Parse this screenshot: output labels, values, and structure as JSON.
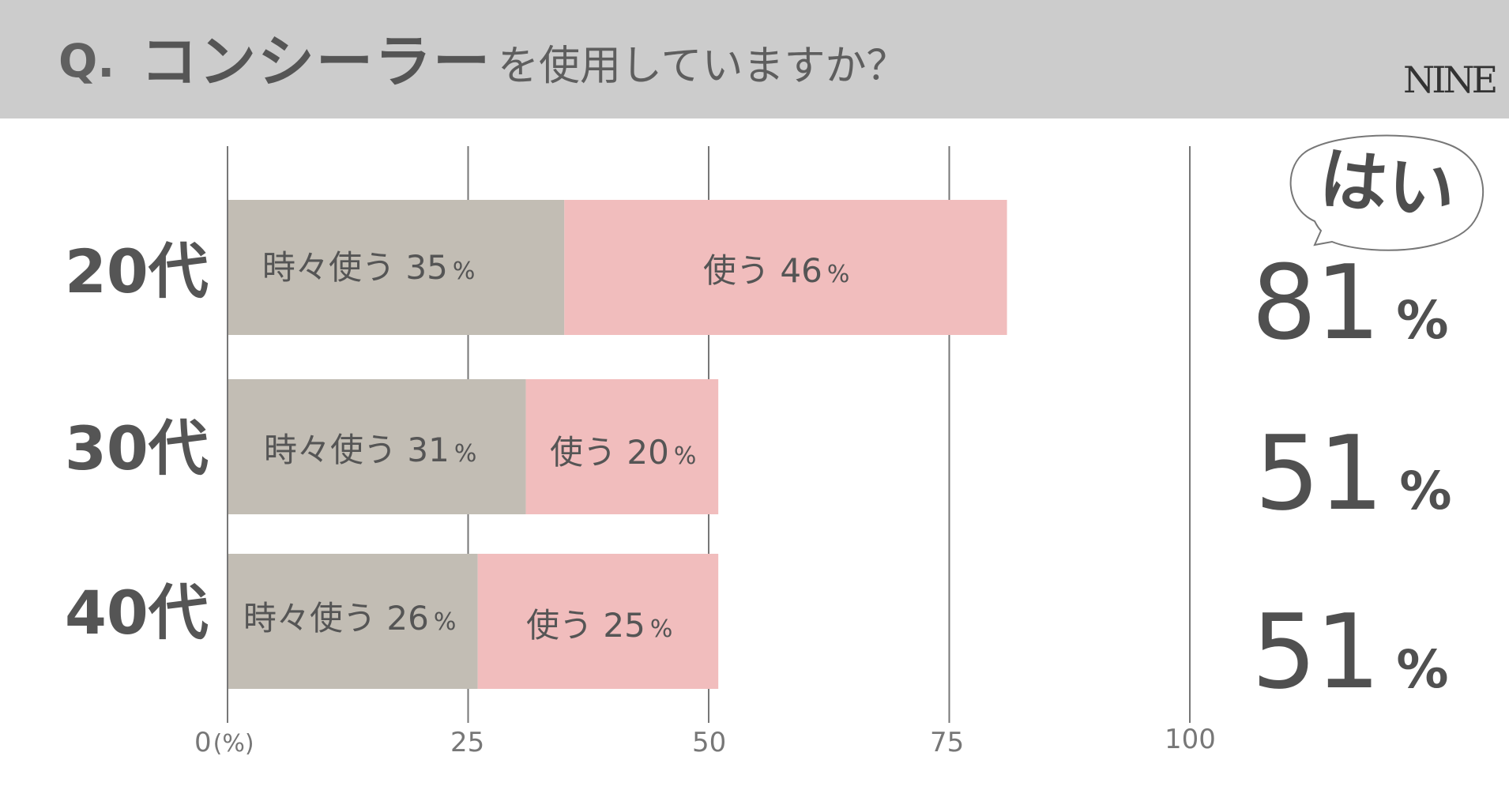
{
  "header": {
    "q_prefix": "Q.",
    "q_main": "コンシーラー",
    "q_rest": "を使用していますか？",
    "brand": "NINE"
  },
  "colors": {
    "header_bg": "#cccccc",
    "sometimes": "#c2bdb4",
    "uses": "#f1bdbd",
    "text": "#555555",
    "grid": "#777777"
  },
  "yes_label": "はい",
  "chart_data": {
    "type": "bar",
    "orientation": "horizontal",
    "stacked": true,
    "categories": [
      "20代",
      "30代",
      "40代"
    ],
    "series": [
      {
        "name": "時々使う",
        "values": [
          35,
          31,
          26
        ]
      },
      {
        "name": "使う",
        "values": [
          46,
          20,
          25
        ]
      }
    ],
    "xlim": [
      0,
      100
    ],
    "x_ticks": [
      "0",
      "25",
      "50",
      "75",
      "100"
    ],
    "x_unit": "(%)",
    "grid": true,
    "percent_sign": "%",
    "totals": [
      "81",
      "51",
      "51"
    ]
  }
}
